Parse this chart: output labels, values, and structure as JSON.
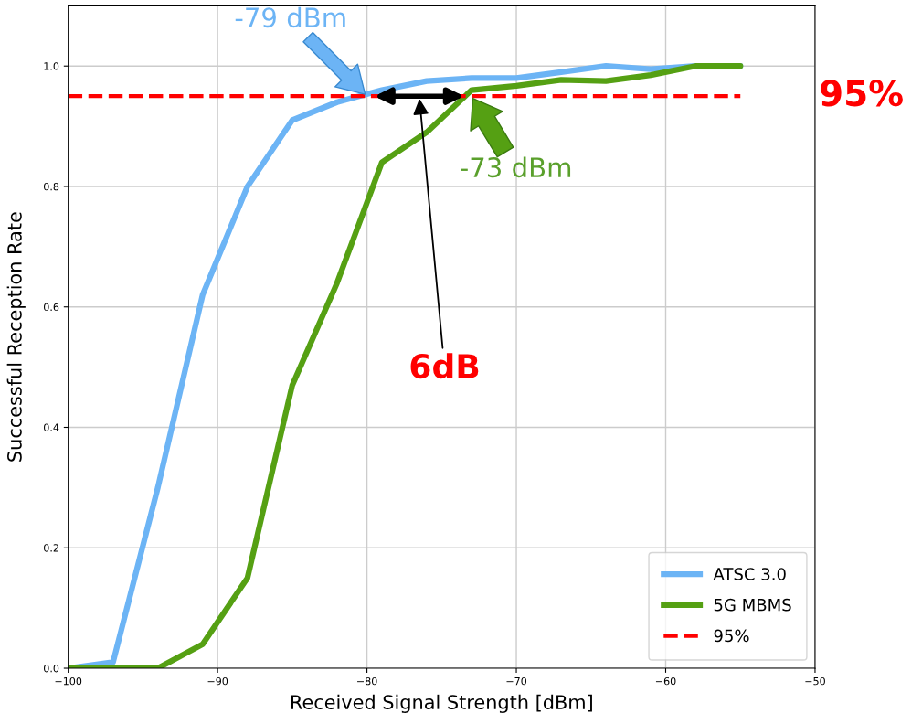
{
  "chart_data": {
    "type": "line",
    "xlabel": "Received Signal Strength [dBm]",
    "ylabel": "Successful Reception Rate",
    "series": [
      {
        "name": "ATSC 3.0",
        "color": "#6cb4f5",
        "x": [
          -100,
          -97,
          -94,
          -91,
          -88,
          -85,
          -82,
          -79,
          -76,
          -73,
          -70,
          -67,
          -64,
          -61,
          -58,
          -55
        ],
        "values": [
          0.0,
          0.01,
          0.3,
          0.62,
          0.8,
          0.91,
          0.94,
          0.96,
          0.975,
          0.98,
          0.98,
          0.99,
          1.0,
          0.995,
          1.0,
          1.0
        ]
      },
      {
        "name": "5G MBMS",
        "color": "#55a013",
        "x": [
          -100,
          -97,
          -94,
          -91,
          -88,
          -85,
          -82,
          -79,
          -76,
          -73,
          -70,
          -67,
          -64,
          -61,
          -58,
          -55
        ],
        "values": [
          0.0,
          0.0,
          0.0,
          0.04,
          0.15,
          0.47,
          0.64,
          0.84,
          0.89,
          0.96,
          0.967,
          0.977,
          0.975,
          0.985,
          1.0,
          1.0
        ]
      }
    ],
    "ref_lines": [
      {
        "axis": "y",
        "value": 0.95,
        "label": "95%",
        "color": "#ff0000",
        "line_style": "dashed"
      }
    ],
    "annotations": [
      {
        "text": "-79 dBm",
        "x": -80,
        "y": 0.95
      },
      {
        "text": "-73 dBm",
        "x": -73,
        "y": 0.95
      },
      {
        "text": "6dB",
        "x": -76.5,
        "y": 0.95
      },
      "95%"
    ],
    "xlim": [
      -100,
      -50
    ],
    "xticks": [
      {
        "value": -100,
        "label": "−100"
      },
      {
        "value": -90,
        "label": "−90"
      },
      {
        "value": -80,
        "label": "−80"
      },
      {
        "value": -70,
        "label": "−70"
      },
      {
        "value": -60,
        "label": "−60"
      },
      {
        "value": -50,
        "label": "−50"
      }
    ],
    "ylim": [
      0,
      1.1
    ],
    "yticks": [
      {
        "value": 0,
        "label": "0.0"
      },
      {
        "value": 0.2,
        "label": "0.2"
      },
      {
        "value": 0.4,
        "label": "0.4"
      },
      {
        "value": 0.6,
        "label": "0.6"
      },
      {
        "value": 0.8,
        "label": "0.8"
      },
      {
        "value": 1.0,
        "label": "1.0"
      }
    ],
    "grid": true,
    "legend": "bottom right",
    "line_style": "solid",
    "marker": "none"
  }
}
